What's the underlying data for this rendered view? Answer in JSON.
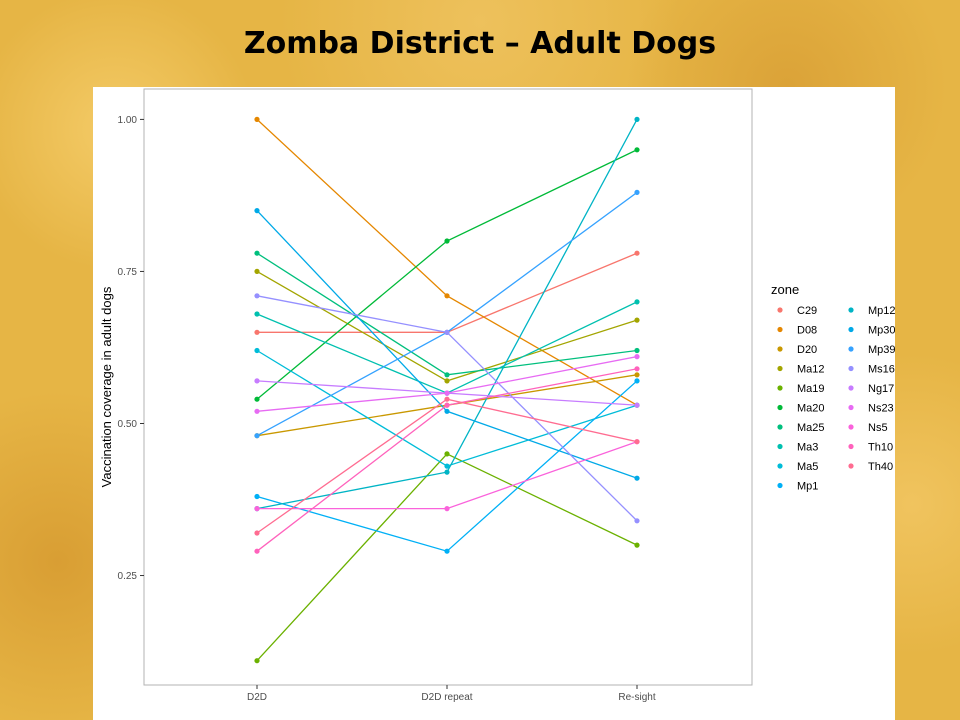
{
  "slide": {
    "title": "Zomba District – Adult Dogs"
  },
  "chart_data": {
    "type": "line",
    "title": "",
    "xlabel": "",
    "ylabel": "Vaccination coverage in adult dogs",
    "categories": [
      "D2D",
      "D2D repeat",
      "Re-sight"
    ],
    "ylim": [
      0.07,
      1.05
    ],
    "yticks": [
      0.25,
      0.5,
      0.75,
      1.0
    ],
    "ytick_labels": [
      "0.25",
      "0.50",
      "0.75",
      "1.00"
    ],
    "grid": false,
    "legend": {
      "title": "zone",
      "position": "right",
      "columns": 2
    },
    "series": [
      {
        "name": "C29",
        "color": "#F8766D",
        "values": [
          0.65,
          0.65,
          0.78
        ]
      },
      {
        "name": "D08",
        "color": "#E58700",
        "values": [
          1.0,
          0.71,
          0.53
        ]
      },
      {
        "name": "D20",
        "color": "#C99800",
        "values": [
          0.48,
          0.53,
          0.58
        ]
      },
      {
        "name": "Ma12",
        "color": "#A3A500",
        "values": [
          0.75,
          0.57,
          0.67
        ]
      },
      {
        "name": "Ma19",
        "color": "#6BB100",
        "values": [
          0.11,
          0.45,
          0.3
        ]
      },
      {
        "name": "Ma20",
        "color": "#00BA38",
        "values": [
          0.54,
          0.8,
          0.95
        ]
      },
      {
        "name": "Ma25",
        "color": "#00BF7D",
        "values": [
          0.78,
          0.58,
          0.62
        ]
      },
      {
        "name": "Ma3",
        "color": "#00C0AF",
        "values": [
          0.68,
          0.55,
          0.7
        ]
      },
      {
        "name": "Ma5",
        "color": "#00BCD8",
        "values": [
          0.62,
          0.43,
          0.53
        ]
      },
      {
        "name": "Mp1",
        "color": "#00B0F6",
        "values": [
          0.38,
          0.29,
          0.57
        ]
      },
      {
        "name": "Mp12",
        "color": "#00B4C5",
        "values": [
          0.36,
          0.42,
          1.0
        ]
      },
      {
        "name": "Mp30",
        "color": "#00A9E7",
        "values": [
          0.85,
          0.52,
          0.41
        ]
      },
      {
        "name": "Mp39",
        "color": "#35A2FF",
        "values": [
          0.48,
          0.65,
          0.88
        ]
      },
      {
        "name": "Ms16",
        "color": "#9590FF",
        "values": [
          0.71,
          0.65,
          0.34
        ]
      },
      {
        "name": "Ng17",
        "color": "#C77CFF",
        "values": [
          0.57,
          0.55,
          0.53
        ]
      },
      {
        "name": "Ns23",
        "color": "#E76BF3",
        "values": [
          0.52,
          0.55,
          0.61
        ]
      },
      {
        "name": "Ns5",
        "color": "#FA62DB",
        "values": [
          0.36,
          0.36,
          0.47
        ]
      },
      {
        "name": "Th10",
        "color": "#FF62BC",
        "values": [
          0.29,
          0.53,
          0.59
        ]
      },
      {
        "name": "Th40",
        "color": "#FF6C91",
        "values": [
          0.32,
          0.54,
          0.47
        ]
      }
    ]
  }
}
